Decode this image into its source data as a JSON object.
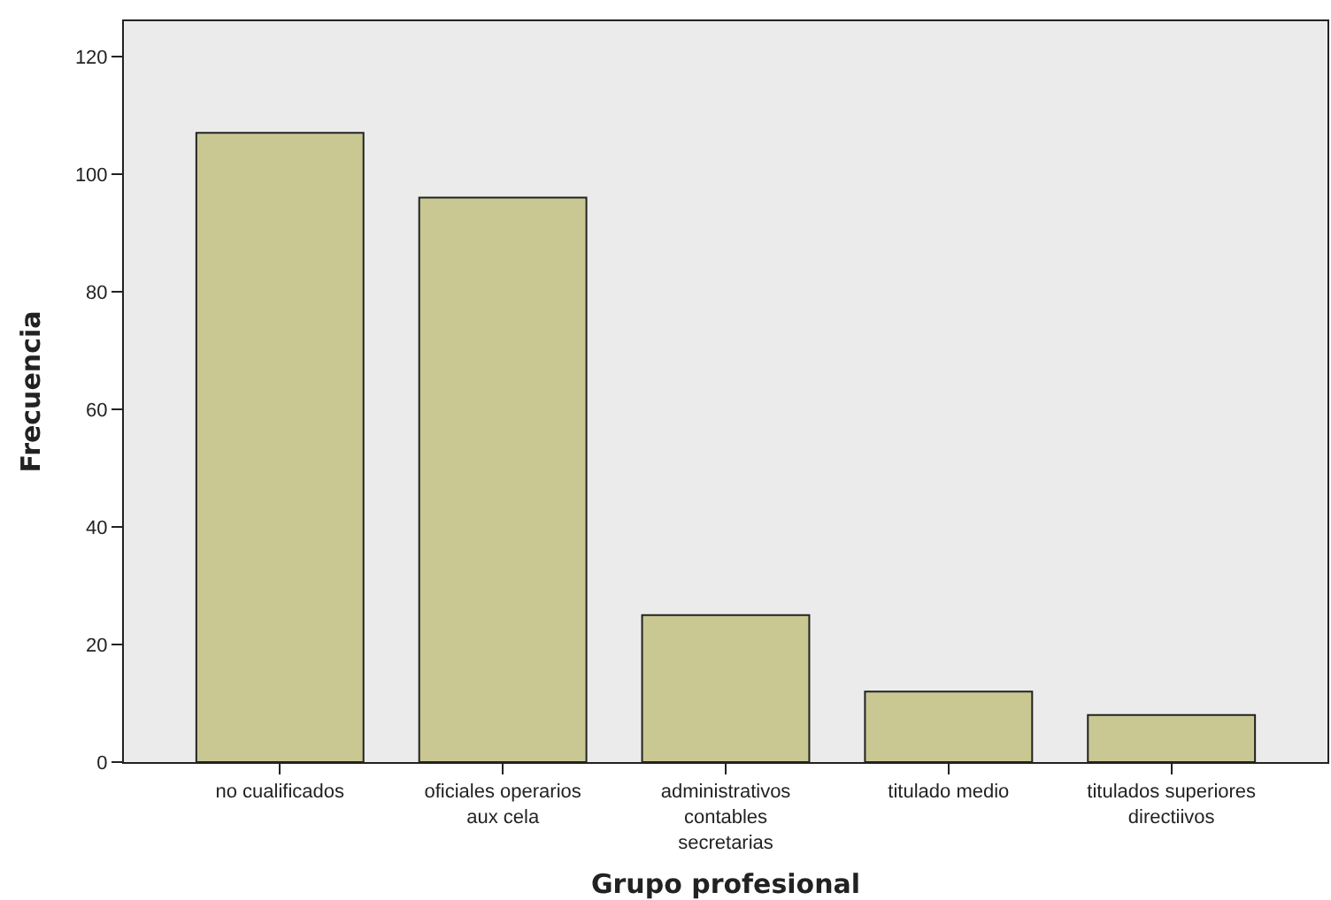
{
  "chart_data": {
    "type": "bar",
    "xlabel": "Grupo profesional",
    "ylabel": "Frecuencia",
    "categories": [
      "no cualificados",
      "oficiales operarios\naux cela",
      "administrativos\ncontables\nsecretarias",
      "titulado medio",
      "titulados superiores\ndirectiivos"
    ],
    "values": [
      107,
      96,
      25,
      12,
      8
    ],
    "color": "#c9c893",
    "ylim": [
      0,
      126
    ],
    "yticks": [
      0,
      20,
      40,
      60,
      80,
      100,
      120
    ],
    "grid": false
  }
}
